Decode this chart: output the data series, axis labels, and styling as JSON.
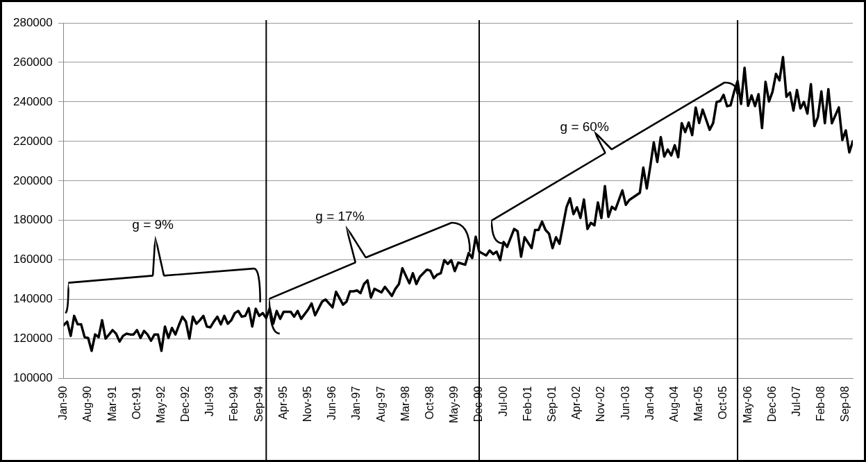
{
  "chart_data": {
    "type": "line",
    "xlim": [
      "1990-01",
      "2008-11"
    ],
    "xticks": [
      {
        "value": "1990-01",
        "label": "Jan-90"
      },
      {
        "value": "1990-08",
        "label": "Aug-90"
      },
      {
        "value": "1991-03",
        "label": "Mar-91"
      },
      {
        "value": "1991-10",
        "label": "Oct-91"
      },
      {
        "value": "1992-05",
        "label": "May-92"
      },
      {
        "value": "1992-12",
        "label": "Dec-92"
      },
      {
        "value": "1993-07",
        "label": "Jul-93"
      },
      {
        "value": "1994-02",
        "label": "Feb-94"
      },
      {
        "value": "1994-09",
        "label": "Sep-94"
      },
      {
        "value": "1995-04",
        "label": "Apr-95"
      },
      {
        "value": "1995-11",
        "label": "Nov-95"
      },
      {
        "value": "1996-06",
        "label": "Jun-96"
      },
      {
        "value": "1997-01",
        "label": "Jan-97"
      },
      {
        "value": "1997-08",
        "label": "Aug-97"
      },
      {
        "value": "1998-03",
        "label": "Mar-98"
      },
      {
        "value": "1998-10",
        "label": "Oct-98"
      },
      {
        "value": "1999-05",
        "label": "May-99"
      },
      {
        "value": "1999-12",
        "label": "Dec-99"
      },
      {
        "value": "2000-07",
        "label": "Jul-00"
      },
      {
        "value": "2001-02",
        "label": "Feb-01"
      },
      {
        "value": "2001-09",
        "label": "Sep-01"
      },
      {
        "value": "2002-04",
        "label": "Apr-02"
      },
      {
        "value": "2002-11",
        "label": "Nov-02"
      },
      {
        "value": "2003-06",
        "label": "Jun-03"
      },
      {
        "value": "2004-01",
        "label": "Jan-04"
      },
      {
        "value": "2004-08",
        "label": "Aug-04"
      },
      {
        "value": "2005-03",
        "label": "Mar-05"
      },
      {
        "value": "2005-10",
        "label": "Oct-05"
      },
      {
        "value": "2006-05",
        "label": "May-06"
      },
      {
        "value": "2006-12",
        "label": "Dec-06"
      },
      {
        "value": "2007-07",
        "label": "Jul-07"
      },
      {
        "value": "2008-02",
        "label": "Feb-08"
      },
      {
        "value": "2008-09",
        "label": "Sep-08"
      }
    ],
    "ylim": [
      100000,
      280000
    ],
    "yticks": [
      100000,
      120000,
      140000,
      160000,
      180000,
      200000,
      220000,
      240000,
      260000,
      280000
    ],
    "grid": "y",
    "legend": false,
    "marker": "none",
    "line_style": "solid",
    "series": [
      {
        "color": "#000000",
        "x": [
          "1990-01",
          "1990-02",
          "1990-03",
          "1990-04",
          "1990-05",
          "1990-06",
          "1990-07",
          "1990-08",
          "1990-09",
          "1990-10",
          "1990-11",
          "1990-12",
          "1991-01",
          "1991-02",
          "1991-03",
          "1991-04",
          "1991-05",
          "1991-06",
          "1991-07",
          "1991-08",
          "1991-09",
          "1991-10",
          "1991-11",
          "1991-12",
          "1992-01",
          "1992-02",
          "1992-03",
          "1992-04",
          "1992-05",
          "1992-06",
          "1992-07",
          "1992-08",
          "1992-09",
          "1992-10",
          "1992-11",
          "1992-12",
          "1993-01",
          "1993-02",
          "1993-03",
          "1993-04",
          "1993-05",
          "1993-06",
          "1993-07",
          "1993-08",
          "1993-09",
          "1993-10",
          "1993-11",
          "1993-12",
          "1994-01",
          "1994-02",
          "1994-03",
          "1994-04",
          "1994-05",
          "1994-06",
          "1994-07",
          "1994-08",
          "1994-09",
          "1994-10",
          "1994-11",
          "1994-12",
          "1995-01",
          "1995-02",
          "1995-03",
          "1995-04",
          "1995-06",
          "1995-07",
          "1995-08",
          "1995-09",
          "1995-11",
          "1995-12",
          "1996-01",
          "1996-03",
          "1996-04",
          "1996-06",
          "1996-07",
          "1996-09",
          "1996-10",
          "1996-11",
          "1996-12",
          "1997-01",
          "1997-02",
          "1997-03",
          "1997-04",
          "1997-05",
          "1997-06",
          "1997-08",
          "1997-09",
          "1997-11",
          "1997-12",
          "1998-01",
          "1998-02",
          "1998-04",
          "1998-05",
          "1998-06",
          "1998-07",
          "1998-09",
          "1998-10",
          "1998-11",
          "1998-12",
          "1999-01",
          "1999-02",
          "1999-03",
          "1999-04",
          "1999-05",
          "1999-06",
          "1999-08",
          "1999-09",
          "1999-10",
          "1999-11",
          "1999-12",
          "2000-02",
          "2000-03",
          "2000-04",
          "2000-05",
          "2000-06",
          "2000-07",
          "2000-08",
          "2000-10",
          "2000-11",
          "2000-12",
          "2001-01",
          "2001-03",
          "2001-04",
          "2001-05",
          "2001-06",
          "2001-07",
          "2001-08",
          "2001-09",
          "2001-10",
          "2001-11",
          "2002-01",
          "2002-02",
          "2002-03",
          "2002-04",
          "2002-05",
          "2002-06",
          "2002-07",
          "2002-08",
          "2002-09",
          "2002-10",
          "2002-11",
          "2002-12",
          "2003-01",
          "2003-02",
          "2003-03",
          "2003-05",
          "2003-06",
          "2003-07",
          "2003-10",
          "2003-11",
          "2003-12",
          "2004-01",
          "2004-02",
          "2004-03",
          "2004-04",
          "2004-05",
          "2004-06",
          "2004-07",
          "2004-08",
          "2004-09",
          "2004-10",
          "2004-11",
          "2004-12",
          "2005-01",
          "2005-02",
          "2005-03",
          "2005-04",
          "2005-06",
          "2005-07",
          "2005-08",
          "2005-09",
          "2005-10",
          "2005-11",
          "2005-12",
          "2006-01",
          "2006-02",
          "2006-03",
          "2006-04",
          "2006-05",
          "2006-06",
          "2006-07",
          "2006-08",
          "2006-09",
          "2006-10",
          "2006-11",
          "2006-12",
          "2007-01",
          "2007-02",
          "2007-03",
          "2007-04",
          "2007-05",
          "2007-06",
          "2007-07",
          "2007-08",
          "2007-09",
          "2007-10",
          "2007-11",
          "2007-12",
          "2008-01",
          "2008-02",
          "2008-03",
          "2008-04",
          "2008-05",
          "2008-07",
          "2008-08",
          "2008-09",
          "2008-10",
          "2008-11"
        ],
        "values": [
          127000,
          128800,
          121600,
          131700,
          127400,
          127400,
          120900,
          120500,
          114000,
          122300,
          120900,
          129500,
          120200,
          122300,
          124500,
          122700,
          118700,
          121600,
          122700,
          122300,
          122300,
          124500,
          120500,
          124100,
          122300,
          119100,
          122300,
          122300,
          114000,
          126300,
          120500,
          125600,
          122300,
          127000,
          131300,
          128800,
          120200,
          131300,
          127700,
          129500,
          131700,
          126300,
          125900,
          128800,
          131300,
          127400,
          131700,
          127700,
          129500,
          133100,
          134200,
          131300,
          131700,
          135600,
          126300,
          135300,
          131700,
          133100,
          130600,
          135600,
          127700,
          134200,
          130200,
          133800,
          133800,
          131300,
          134200,
          130200,
          134900,
          138000,
          132000,
          138900,
          140000,
          136000,
          143900,
          137400,
          138900,
          144100,
          144100,
          144600,
          143200,
          147800,
          149700,
          141000,
          145400,
          143600,
          146400,
          141800,
          145400,
          147800,
          155800,
          148200,
          153300,
          147800,
          151500,
          155100,
          154600,
          150800,
          152600,
          153300,
          159900,
          158000,
          159900,
          154400,
          158700,
          157600,
          163500,
          161000,
          171800,
          164200,
          162300,
          164800,
          163000,
          164200,
          159900,
          169100,
          166600,
          175700,
          174500,
          161700,
          171500,
          166000,
          175200,
          175200,
          179400,
          175200,
          173300,
          166000,
          171500,
          168200,
          186700,
          191200,
          183200,
          186700,
          181300,
          190600,
          175700,
          178800,
          177500,
          189100,
          181200,
          197400,
          181800,
          186900,
          185500,
          195200,
          187900,
          190400,
          194000,
          206800,
          196200,
          207400,
          219500,
          209600,
          222200,
          212300,
          215900,
          212900,
          218100,
          212000,
          229300,
          224700,
          229600,
          223200,
          237200,
          229300,
          236100,
          225900,
          229300,
          240000,
          240400,
          243600,
          237800,
          238300,
          245100,
          250600,
          239000,
          257300,
          238000,
          243300,
          237900,
          243900,
          226800,
          250200,
          240200,
          245100,
          254200,
          250900,
          262700,
          242600,
          244800,
          235600,
          246000,
          236700,
          240000,
          234100,
          249000,
          227800,
          232300,
          245300,
          229200,
          246500,
          229200,
          237200,
          220700,
          225600,
          214400,
          220100
        ]
      }
    ],
    "ref_lines": [
      {
        "axis": "x",
        "value": "1994-11",
        "color": "#000000"
      },
      {
        "axis": "x",
        "value": "1999-12",
        "color": "#000000"
      },
      {
        "axis": "x",
        "value": "2006-02",
        "color": "#000000"
      }
    ],
    "annotations": [
      "g = 9%",
      "g = 17%",
      "g = 60%"
    ]
  }
}
